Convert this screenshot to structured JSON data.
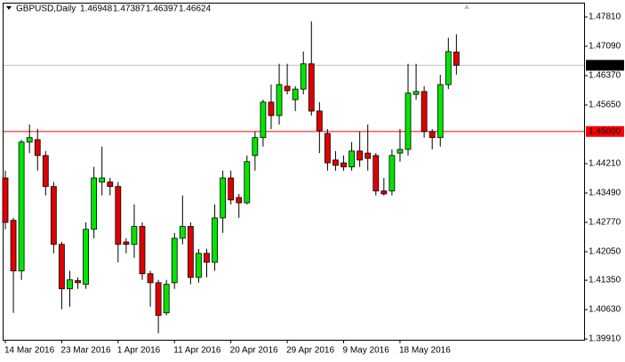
{
  "chart_data": {
    "type": "candlestick",
    "title": "GBPUSD,Daily",
    "categories": [
      "14 Mar 2016",
      null,
      null,
      null,
      null,
      null,
      null,
      "23 Mar 2016",
      null,
      null,
      null,
      null,
      null,
      null,
      "1 Apr 2016",
      null,
      null,
      null,
      null,
      null,
      null,
      "11 Apr 2016",
      null,
      null,
      null,
      null,
      null,
      null,
      "20 Apr 2016",
      null,
      null,
      null,
      null,
      null,
      null,
      "29 Apr 2016",
      null,
      null,
      null,
      null,
      null,
      null,
      "9 May 2016",
      null,
      null,
      null,
      null,
      null,
      null,
      "18 May 2016",
      null,
      null,
      null,
      null,
      null,
      null,
      null
    ],
    "open": [
      1.4386,
      1.4282,
      1.4158,
      1.4474,
      1.448,
      1.4441,
      1.4365,
      1.4223,
      1.4114,
      1.4134,
      1.4125,
      1.426,
      1.4376,
      1.4376,
      1.4365,
      1.4229,
      1.4223,
      1.4267,
      1.4151,
      1.4129,
      1.4055,
      1.4129,
      1.4238,
      1.4267,
      1.4142,
      1.4201,
      1.4179,
      1.4288,
      1.4386,
      1.4338,
      1.4325,
      1.4441,
      1.4485,
      1.4572,
      1.4539,
      1.4611,
      1.4578,
      1.4604,
      1.4666,
      1.455,
      1.4495,
      1.443,
      1.4423,
      1.4413,
      1.4452,
      1.4447,
      1.4441,
      1.4354,
      1.4354,
      1.4447,
      1.4456,
      1.4591,
      1.4598,
      1.45,
      1.4485,
      1.4615,
      1.46948
    ],
    "high": [
      1.4404,
      1.4288,
      1.448,
      1.4517,
      1.4506,
      1.4452,
      1.4376,
      1.4229,
      1.4158,
      1.4142,
      1.4277,
      1.4413,
      1.4463,
      1.4386,
      1.4376,
      1.4238,
      1.4321,
      1.4277,
      1.4158,
      1.4136,
      1.4136,
      1.4251,
      1.4343,
      1.4277,
      1.4212,
      1.4212,
      1.4321,
      1.4404,
      1.4404,
      1.4347,
      1.4441,
      1.45,
      1.4578,
      1.4615,
      1.4666,
      1.4666,
      1.4611,
      1.4696,
      1.477,
      1.4572,
      1.4506,
      1.4452,
      1.4441,
      1.4474,
      1.45,
      1.4517,
      1.4447,
      1.4386,
      1.4456,
      1.4506,
      1.4666,
      1.4666,
      1.4611,
      1.4506,
      1.4639,
      1.473,
      1.47387
    ],
    "low": [
      1.426,
      1.4055,
      1.4136,
      1.4447,
      1.4404,
      1.4343,
      1.4201,
      1.4064,
      1.407,
      1.4114,
      1.4114,
      1.4238,
      1.4343,
      1.4343,
      1.4179,
      1.4201,
      1.419,
      1.4136,
      1.407,
      1.4005,
      1.4049,
      1.4114,
      1.4223,
      1.4125,
      1.4129,
      1.4142,
      1.4158,
      1.4251,
      1.4321,
      1.4288,
      1.4321,
      1.4404,
      1.4463,
      1.4506,
      1.4517,
      1.4591,
      1.455,
      1.4591,
      1.4539,
      1.4447,
      1.4404,
      1.4404,
      1.4404,
      1.4404,
      1.4413,
      1.4404,
      1.4343,
      1.4343,
      1.4343,
      1.4426,
      1.4441,
      1.4578,
      1.4485,
      1.4456,
      1.4463,
      1.4604,
      1.46397
    ],
    "close": [
      1.4277,
      1.4158,
      1.4474,
      1.4485,
      1.4441,
      1.4365,
      1.4223,
      1.4114,
      1.4136,
      1.4129,
      1.426,
      1.4386,
      1.4386,
      1.4365,
      1.4223,
      1.4223,
      1.4267,
      1.4151,
      1.4129,
      1.4049,
      1.4125,
      1.4238,
      1.4267,
      1.4142,
      1.4201,
      1.4179,
      1.4288,
      1.4386,
      1.4332,
      1.4325,
      1.4426,
      1.4485,
      1.4572,
      1.4539,
      1.4615,
      1.46,
      1.4604,
      1.4666,
      1.455,
      1.4502,
      1.4423,
      1.4417,
      1.4413,
      1.4452,
      1.443,
      1.4434,
      1.4354,
      1.4347,
      1.4441,
      1.4456,
      1.4594,
      1.4598,
      1.45,
      1.4485,
      1.4615,
      1.4696,
      1.46624
    ],
    "up_color": "#00e600",
    "down_color": "#e00000",
    "ylim": [
      1.3989,
      1.4816
    ],
    "yticks": [
      {
        "value": 1.4781,
        "label": "1.47810"
      },
      {
        "value": 1.4709,
        "label": "1.47090"
      },
      {
        "value": 1.4637,
        "label": "1.46370"
      },
      {
        "value": 1.4565,
        "label": "1.45650"
      },
      {
        "value": 1.4421,
        "label": "1.44210"
      },
      {
        "value": 1.4349,
        "label": "1.43490"
      },
      {
        "value": 1.4277,
        "label": "1.42770"
      },
      {
        "value": 1.4205,
        "label": "1.42050"
      },
      {
        "value": 1.4135,
        "label": "1.41350"
      },
      {
        "value": 1.4063,
        "label": "1.40630"
      },
      {
        "value": 1.3991,
        "label": "1.39910"
      }
    ],
    "horizontal_lines": [
      {
        "value": 1.45,
        "label": "1.45000",
        "color": "#ff0000",
        "label_background": "#ff0000"
      },
      {
        "value": 1.46624,
        "label": "1.46624",
        "color": "#c0c0c0",
        "label_background": "#000000"
      }
    ]
  }
}
